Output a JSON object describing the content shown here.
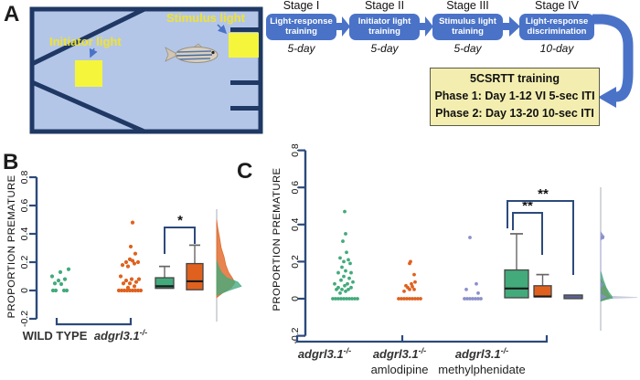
{
  "figure": {
    "panel_a": "A",
    "panel_b": "B",
    "panel_c": "C"
  },
  "apparatus": {
    "initiator_label": "Initiator light",
    "stimulus_label": "Stimulus light"
  },
  "flowchart": {
    "stages": [
      {
        "title": "Stage I",
        "line1": "Light-response",
        "line2": "training",
        "duration": "5-day"
      },
      {
        "title": "Stage II",
        "line1": "Initiator light",
        "line2": "training",
        "duration": "5-day"
      },
      {
        "title": "Stage III",
        "line1": "Stimulus light",
        "line2": "training",
        "duration": "5-day"
      },
      {
        "title": "Stage IV",
        "line1": "Light-response",
        "line2": "discrimination",
        "duration": "10-day"
      }
    ],
    "training_box": {
      "line1": "5CSRTT training",
      "line2": "Phase 1: Day 1-12 VI 5-sec ITI",
      "line3": "Phase 2: Day 13-20 10-sec ITI"
    }
  },
  "colors": {
    "flow_blue": "#4a73c8",
    "navy": "#1f3864",
    "tank_fill": "#b4c6e7",
    "signal_yellow": "#f5f53c",
    "pale_yellow_box": "#f3eeb0",
    "green": "#43aa7c",
    "orange": "#e0611e",
    "purple": "#8b90cc",
    "purple_dark": "#5d6390",
    "axis_navy": "#2c4a7c",
    "density_spike": "#c6c9dd"
  },
  "chart_data": [
    {
      "panel": "B",
      "type": "scatter",
      "subtype": "raincloud: jittered points + box plots + half-violin density",
      "ylabel": "PROPORTION PREMATURE",
      "ylim": [
        -0.2,
        0.8
      ],
      "yticks": [
        -0.2,
        0,
        0.2,
        0.4,
        0.6,
        0.8
      ],
      "ytick_labels": [
        "-0.2",
        "0",
        "0.2",
        "0.4",
        "0.6",
        "0.8"
      ],
      "groups": [
        {
          "name": "WILD TYPE",
          "color": "#43aa7c",
          "points": [
            [
              -8,
              0
            ],
            [
              -5,
              0
            ],
            [
              4,
              0
            ],
            [
              7,
              0
            ],
            [
              -6,
              0.05
            ],
            [
              1,
              0.045
            ],
            [
              -2,
              0.07
            ],
            [
              5,
              0.08
            ],
            [
              -9,
              0.1
            ],
            [
              0,
              0.13
            ],
            [
              9,
              0.15
            ]
          ]
        },
        {
          "name": "adgrl3.1-/-",
          "color": "#e0611e",
          "points": [
            [
              -13,
              0
            ],
            [
              -10,
              0
            ],
            [
              -7,
              0
            ],
            [
              -4,
              0
            ],
            [
              -1,
              0
            ],
            [
              2,
              0
            ],
            [
              5,
              0
            ],
            [
              8,
              0
            ],
            [
              11,
              0
            ],
            [
              -3,
              0.02
            ],
            [
              4,
              0.03
            ],
            [
              -8,
              0.05
            ],
            [
              -1,
              0.05
            ],
            [
              6,
              0.06
            ],
            [
              -5,
              0.07
            ],
            [
              1,
              0.08
            ],
            [
              9,
              0.08
            ],
            [
              -11,
              0.1
            ],
            [
              -3,
              0.17
            ],
            [
              -9,
              0.18
            ],
            [
              4,
              0.19
            ],
            [
              -5,
              0.2
            ],
            [
              2,
              0.21
            ],
            [
              8,
              0.2
            ],
            [
              -1,
              0.22
            ],
            [
              5,
              0.26
            ],
            [
              0,
              0.31
            ],
            [
              2,
              0.48
            ]
          ]
        }
      ],
      "boxes": [
        {
          "group": "WILD TYPE",
          "color": "#43aa7c",
          "q1": 0.015,
          "median": 0.03,
          "q3": 0.09,
          "whisker_high": 0.17
        },
        {
          "group": "adgrl3.1-/-",
          "color": "#e0611e",
          "q1": 0.005,
          "median": 0.065,
          "q3": 0.19,
          "whisker_high": 0.32
        }
      ],
      "significance": [
        {
          "between": [
            "WILD TYPE",
            "adgrl3.1-/-"
          ],
          "label": "*"
        }
      ],
      "densities": [
        {
          "name": "adgrl3.1-/-",
          "color": "#e0611e",
          "opacity": 0.78,
          "profile": [
            [
              -0.05,
              0
            ],
            [
              -0.015,
              7
            ],
            [
              0.02,
              16
            ],
            [
              0.055,
              20
            ],
            [
              0.09,
              17
            ],
            [
              0.13,
              13
            ],
            [
              0.18,
              10
            ],
            [
              0.24,
              8
            ],
            [
              0.3,
              5
            ],
            [
              0.38,
              3
            ],
            [
              0.45,
              1
            ],
            [
              0.5,
              0
            ]
          ]
        },
        {
          "name": "WILD TYPE",
          "color": "#43aa7c",
          "opacity": 0.78,
          "profile": [
            [
              -0.035,
              0
            ],
            [
              0,
              13
            ],
            [
              0.03,
              27
            ],
            [
              0.06,
              23
            ],
            [
              0.09,
              11
            ],
            [
              0.13,
              5
            ],
            [
              0.17,
              2
            ],
            [
              0.21,
              0
            ]
          ]
        }
      ],
      "x_axis_labels": [
        {
          "base": "WILD TYPE",
          "sup": "",
          "sub": "",
          "italic": false
        },
        {
          "base": "adgrl3.1",
          "sup": "-/-",
          "sub": "",
          "italic": true
        }
      ]
    },
    {
      "panel": "C",
      "type": "scatter",
      "subtype": "raincloud: jittered points + box plots + half-violin density",
      "ylabel": "PROPORTION PREMATURE",
      "ylim": [
        -0.2,
        0.8
      ],
      "yticks": [
        -0.2,
        0,
        0.2,
        0.4,
        0.6,
        0.8
      ],
      "ytick_labels": [
        "-0.2",
        "0",
        "0.2",
        "0.4",
        "0.6",
        "0.8"
      ],
      "groups": [
        {
          "name": "adgrl3.1-/-",
          "color": "#43aa7c",
          "points": [
            [
              -14,
              0
            ],
            [
              -11,
              0
            ],
            [
              -8,
              0
            ],
            [
              -5,
              0
            ],
            [
              -2,
              0
            ],
            [
              1,
              0
            ],
            [
              4,
              0
            ],
            [
              7,
              0
            ],
            [
              10,
              0
            ],
            [
              13,
              0
            ],
            [
              -6,
              0.03
            ],
            [
              0,
              0.04
            ],
            [
              -10,
              0.05
            ],
            [
              -4,
              0.05
            ],
            [
              3,
              0.05
            ],
            [
              -8,
              0.06
            ],
            [
              6,
              0.06
            ],
            [
              -1,
              0.07
            ],
            [
              -12,
              0.08
            ],
            [
              2,
              0.08
            ],
            [
              8,
              0.09
            ],
            [
              -5,
              0.1
            ],
            [
              4,
              0.11
            ],
            [
              -2,
              0.12
            ],
            [
              -8,
              0.14
            ],
            [
              6,
              0.14
            ],
            [
              0,
              0.15
            ],
            [
              -4,
              0.17
            ],
            [
              5,
              0.19
            ],
            [
              -2,
              0.2
            ],
            [
              3,
              0.21
            ],
            [
              -6,
              0.22
            ],
            [
              1,
              0.25
            ],
            [
              -3,
              0.31
            ],
            [
              0,
              0.35
            ],
            [
              -1,
              0.47
            ]
          ]
        },
        {
          "name": "adgrl3.1-/- amlodipine",
          "color": "#e0611e",
          "points": [
            [
              -12,
              0
            ],
            [
              -9,
              0
            ],
            [
              -6,
              0
            ],
            [
              -3,
              0
            ],
            [
              0,
              0
            ],
            [
              3,
              0
            ],
            [
              6,
              0
            ],
            [
              9,
              0
            ],
            [
              12,
              0
            ],
            [
              -6,
              0.04
            ],
            [
              0,
              0.05
            ],
            [
              5,
              0.05
            ],
            [
              -2,
              0.06
            ],
            [
              3,
              0.065
            ],
            [
              -4,
              0.07
            ],
            [
              2,
              0.08
            ],
            [
              6,
              0.09
            ],
            [
              5,
              0.13
            ],
            [
              0,
              0.19
            ],
            [
              1,
              0.2
            ]
          ]
        },
        {
          "name": "adgrl3.1-/- methylphenidate",
          "color": "#8b90cc",
          "points": [
            [
              -10,
              0
            ],
            [
              -7,
              0
            ],
            [
              -4,
              0
            ],
            [
              -1,
              0
            ],
            [
              2,
              0
            ],
            [
              5,
              0
            ],
            [
              8,
              0
            ],
            [
              5,
              0.03
            ],
            [
              -8,
              0.05
            ],
            [
              3,
              0.08
            ],
            [
              -4,
              0.33
            ]
          ]
        }
      ],
      "boxes": [
        {
          "group": "adgrl3.1-/-",
          "color": "#43aa7c",
          "q1": 0.005,
          "median": 0.055,
          "q3": 0.155,
          "whisker_high": 0.35
        },
        {
          "group": "adgrl3.1-/- amlodipine",
          "color": "#e0611e",
          "q1": 0.01,
          "median": 0.012,
          "q3": 0.07,
          "whisker_high": 0.13
        },
        {
          "group": "adgrl3.1-/- methylphenidate",
          "color": "#5d6390",
          "q1": 0.004,
          "median": null,
          "q3": 0.02,
          "whisker_high": null
        }
      ],
      "significance": [
        {
          "between": [
            "adgrl3.1-/-",
            "adgrl3.1-/- amlodipine"
          ],
          "label": "**"
        },
        {
          "between": [
            "adgrl3.1-/-",
            "adgrl3.1-/- methylphenidate"
          ],
          "label": "**"
        }
      ],
      "densities": [
        {
          "name": "zero spike",
          "color": "#c6c9dd",
          "opacity": 0.9,
          "profile": [
            [
              0.03,
              0
            ],
            [
              0.016,
              4
            ],
            [
              0.007,
              40
            ],
            [
              0,
              5
            ],
            [
              -0.012,
              0
            ]
          ]
        },
        {
          "name": "adgrl3.1-/- amlodipine",
          "color": "#e0611e",
          "opacity": 0.78,
          "profile": [
            [
              0.11,
              0
            ],
            [
              0.07,
              4
            ],
            [
              0.04,
              7
            ],
            [
              0.02,
              9
            ],
            [
              0.008,
              11
            ],
            [
              -0.004,
              5
            ],
            [
              -0.012,
              0
            ]
          ]
        },
        {
          "name": "adgrl3.1-/-",
          "color": "#43aa7c",
          "opacity": 0.78,
          "profile": [
            [
              0.15,
              0
            ],
            [
              0.1,
              3
            ],
            [
              0.06,
              6
            ],
            [
              0.035,
              9
            ],
            [
              0.015,
              12
            ],
            [
              0.004,
              13
            ],
            [
              -0.006,
              5
            ],
            [
              -0.014,
              0
            ]
          ]
        },
        {
          "name": "adgrl3.1-/- methylphenidate",
          "color": "#8b90cc",
          "opacity": 0.85,
          "profile": [
            [
              0.36,
              0
            ],
            [
              0.335,
              4
            ],
            [
              0.315,
              0
            ],
            [
              0.09,
              0
            ],
            [
              0.075,
              3
            ],
            [
              0.06,
              0
            ],
            [
              0.025,
              0
            ],
            [
              0.01,
              6
            ],
            [
              -0.004,
              0
            ]
          ]
        }
      ],
      "density_marker": {
        "value": 0.33,
        "color": "#8b90cc"
      },
      "x_axis_labels": [
        {
          "base": "adgrl3.1",
          "sup": "-/-",
          "sub": "",
          "italic": true
        },
        {
          "base": "adgrl3.1",
          "sup": "-/-",
          "sub": "amlodipine",
          "italic": true
        },
        {
          "base": "adgrl3.1",
          "sup": "-/-",
          "sub": "methylphenidate",
          "italic": true
        }
      ]
    }
  ]
}
